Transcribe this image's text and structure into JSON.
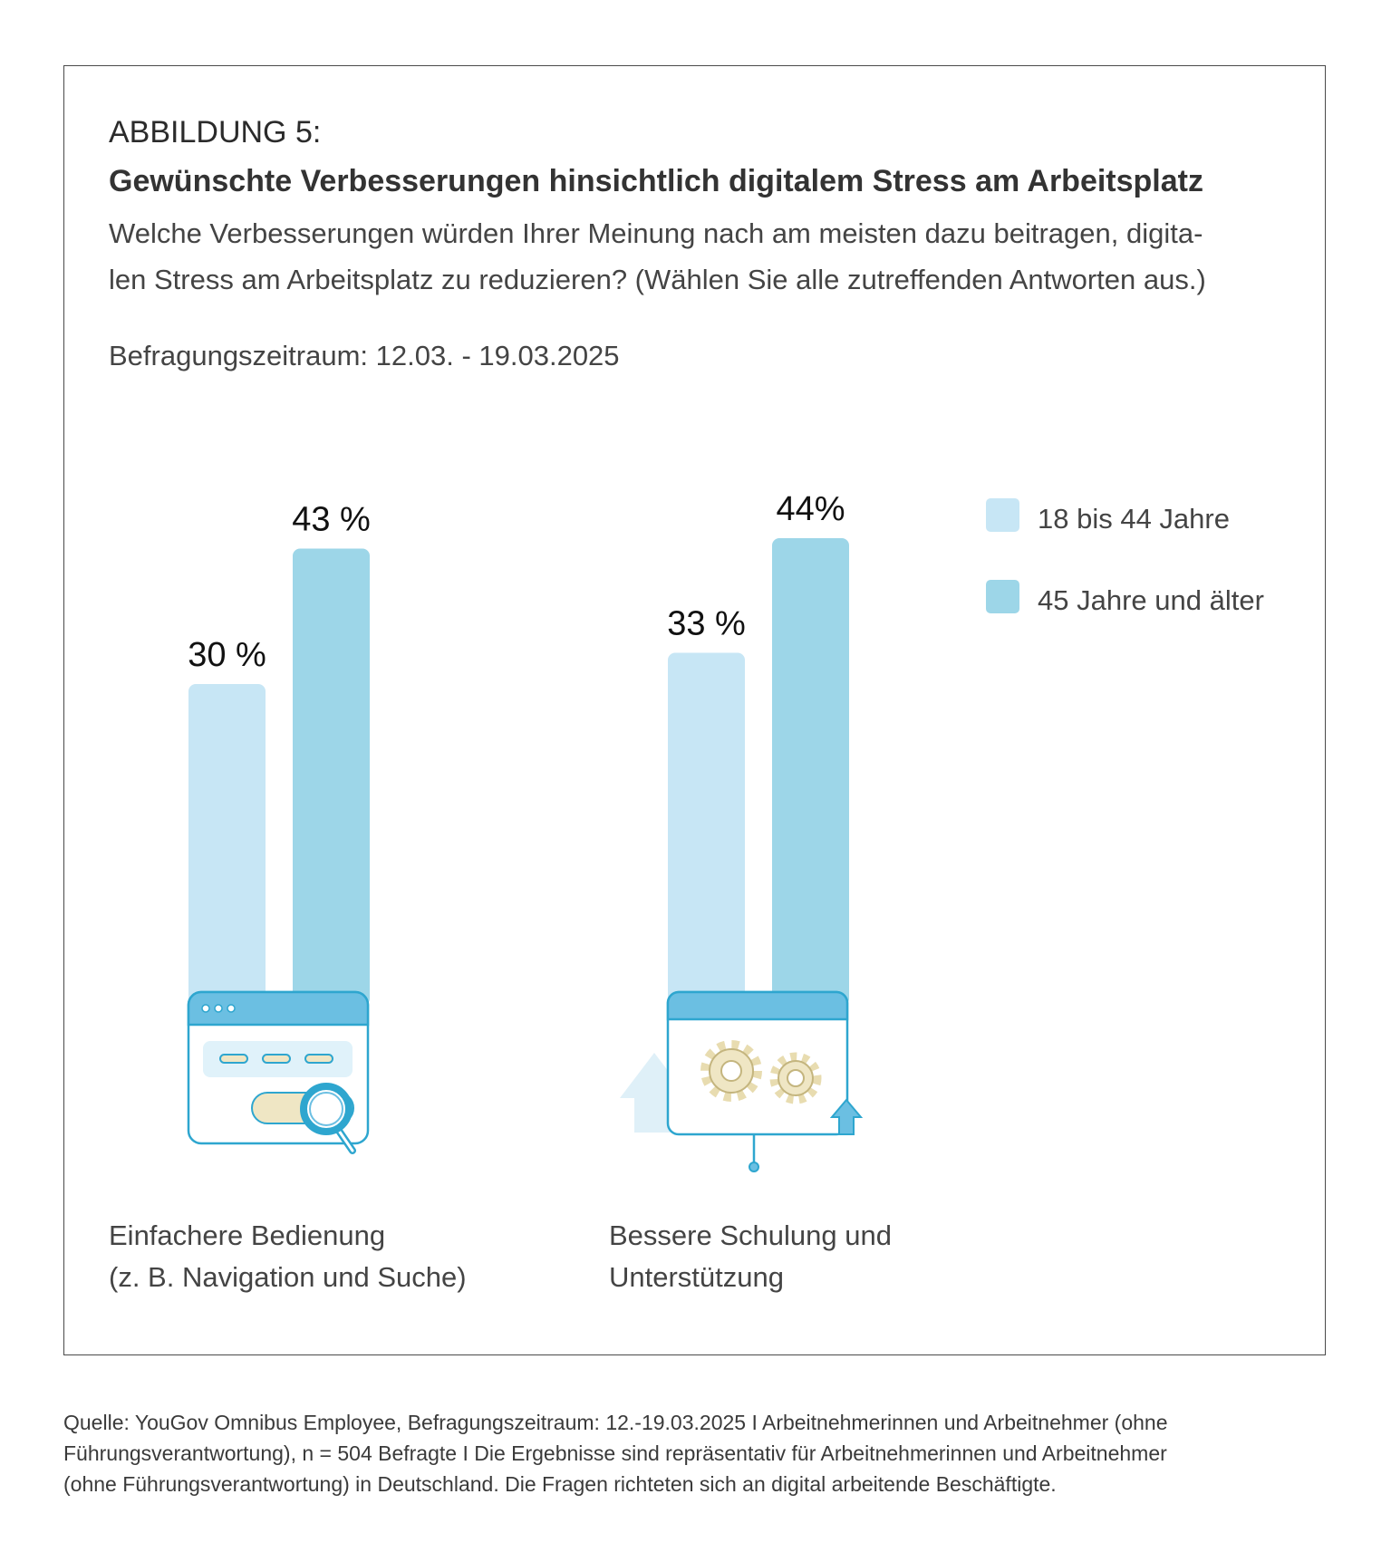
{
  "figure": {
    "label": "ABBILDUNG 5:",
    "title": "Gewünschte Verbesserungen hinsichtlich digitalem Stress am Arbeitsplatz",
    "question_lines": [
      "Welche Verbesserungen würden Ihrer Meinung nach am meisten dazu beitragen, digita-",
      "len Stress am Arbeitsplatz zu reduzieren?  (Wählen Sie alle zutreffenden Antworten aus.)"
    ],
    "period": "Befragungszeitraum: 12.03. - 19.03.2025"
  },
  "legend": [
    {
      "label": "18 bis 44 Jahre",
      "color": "#c7e6f5"
    },
    {
      "label": "45 Jahre und älter",
      "color": "#9dd6e8"
    }
  ],
  "chart_data": {
    "type": "bar",
    "title": "Gewünschte Verbesserungen hinsichtlich digitalem Stress am Arbeitsplatz",
    "xlabel": "",
    "ylabel": "",
    "ylim": [
      0,
      44
    ],
    "grid": false,
    "legend_position": "top-right",
    "categories": [
      "Einfachere Bedienung (z. B. Navigation und Suche)",
      "Bessere Schulung und Unterstützung"
    ],
    "series": [
      {
        "name": "18 bis 44 Jahre",
        "values": [
          30,
          33
        ],
        "labels": [
          "30 %",
          "33 %"
        ],
        "color": "#c7e6f5"
      },
      {
        "name": "45 Jahre und älter",
        "values": [
          43,
          44
        ],
        "labels": [
          "43 %",
          "44%"
        ],
        "color": "#9dd6e8"
      }
    ]
  },
  "category_labels": [
    [
      "Einfachere Bedienung",
      "(z. B. Navigation und Suche)"
    ],
    [
      "Bessere Schulung und",
      "Unterstützung"
    ]
  ],
  "icons": [
    "search-window-icon",
    "gears-window-icon"
  ],
  "source_lines": [
    "Quelle: YouGov Omnibus Employee, Befragungszeitraum: 12.-19.03.2025 I Arbeitnehmerinnen und Arbeitnehmer (ohne",
    "Führungsverantwortung), n = 504 Befragte I Die Ergebnisse sind repräsentativ für Arbeitnehmerinnen und Arbeitnehmer",
    "(ohne Führungsverantwortung) in Deutschland. Die Fragen richteten sich an digital arbeitende Beschäftigte."
  ]
}
